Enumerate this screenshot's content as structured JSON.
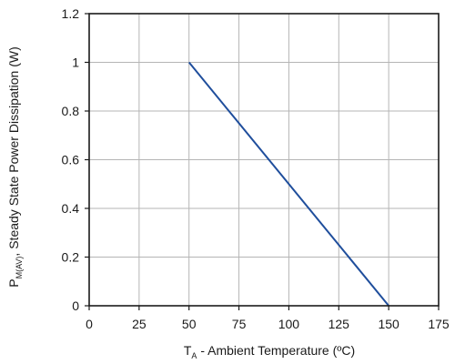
{
  "chart_data": {
    "type": "line",
    "title": "",
    "xlabel": {
      "prefix": "T",
      "subscript": "A",
      "suffix": " - Ambient Temperature (ºC)"
    },
    "ylabel": {
      "prefix": "P",
      "subscript": "M(AV)",
      "suffix": ", Steady State Power Dissipation (W)"
    },
    "xlim": [
      0,
      175
    ],
    "ylim": [
      0,
      1.2
    ],
    "x_ticks": [
      0,
      25,
      50,
      75,
      100,
      125,
      150,
      175
    ],
    "y_ticks": [
      0,
      0.2,
      0.4,
      0.6,
      0.8,
      1,
      1.2
    ],
    "x_tick_labels": [
      "0",
      "25",
      "50",
      "75",
      "100",
      "125",
      "150",
      "175"
    ],
    "y_tick_labels": [
      "0",
      "0.2",
      "0.4",
      "0.6",
      "0.8",
      "1",
      "1.2"
    ],
    "grid": true,
    "series": [
      {
        "color": "#1f4e9c",
        "x": [
          50,
          150
        ],
        "y": [
          1.0,
          0.0
        ]
      }
    ]
  }
}
